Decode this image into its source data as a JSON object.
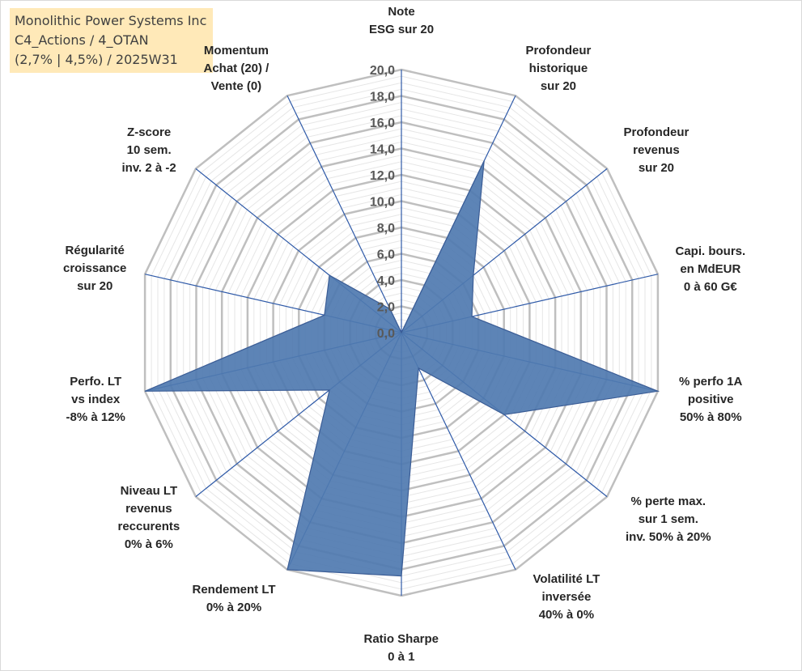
{
  "title": {
    "lines": [
      "Monolithic Power Systems Inc",
      "C4_Actions / 4_OTAN",
      "(2,7% | 4,5%) / 2025W31"
    ]
  },
  "chart_data": {
    "type": "radar",
    "rmin": 0,
    "rmax": 20,
    "tick_step": 2,
    "tick_labels": [
      "0,0",
      "2,0",
      "4,0",
      "6,0",
      "8,0",
      "10,0",
      "12,0",
      "14,0",
      "16,0",
      "18,0",
      "20,0"
    ],
    "categories": [
      [
        "Note",
        "ESG sur 20"
      ],
      [
        "Profondeur",
        "historique",
        "sur 20"
      ],
      [
        "Profondeur",
        "revenus",
        "sur 20"
      ],
      [
        "Capi. bours.",
        "en MdEUR",
        "0 à 60 G€"
      ],
      [
        "% perfo 1A",
        "positive",
        "50% à 80%"
      ],
      [
        "% perte max.",
        "sur 1 sem.",
        "inv. 50% à 20%"
      ],
      [
        "Volatilité LT",
        "inversée",
        "40% à 0%"
      ],
      [
        "Ratio Sharpe",
        "0 à 1"
      ],
      [
        "Rendement LT",
        "0% à 20%"
      ],
      [
        "Niveau LT",
        "revenus",
        "reccurents",
        "0% à 6%"
      ],
      [
        "Perfo. LT",
        "vs index",
        "-8% à 12%"
      ],
      [
        "Régularité",
        "croissance",
        "sur 20"
      ],
      [
        "Z-score",
        "10 sem.",
        "inv. 2 à -2"
      ],
      [
        "Momentum",
        "Achat (20) /",
        "Vente (0)"
      ]
    ],
    "series": [
      {
        "values": [
          0.0,
          14.5,
          7.0,
          5.5,
          20.0,
          10.0,
          3.0,
          18.5,
          20.0,
          7.0,
          20.0,
          6.0,
          7.0,
          2.0
        ]
      }
    ],
    "colors": {
      "series_fill": "#4f79b0",
      "series_stroke": "#3b5d96",
      "spokes": "#2f5aa8",
      "major_grid": "#bfbfbf",
      "minor_grid": "#e6e6e6",
      "label_text": "#262626"
    }
  }
}
